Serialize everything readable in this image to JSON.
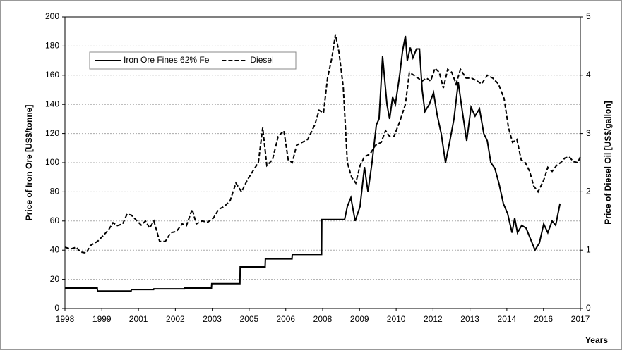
{
  "chart_data": {
    "type": "line",
    "xlabel": "Years",
    "ylabel": "Price of Iron Ore [US$/tonne]",
    "y2label": "Price of Diesel Oil [US$/gallon]",
    "xlim": [
      1998,
      2017
    ],
    "xticks": [
      {
        "value": 1998,
        "label": "1998"
      },
      {
        "value": 1999.36,
        "label": "1999"
      },
      {
        "value": 2000.71,
        "label": "2001"
      },
      {
        "value": 2002.07,
        "label": "2002"
      },
      {
        "value": 2003.43,
        "label": "2003"
      },
      {
        "value": 2004.79,
        "label": "2005"
      },
      {
        "value": 2006.14,
        "label": "2006"
      },
      {
        "value": 2007.5,
        "label": "2008"
      },
      {
        "value": 2008.86,
        "label": "2009"
      },
      {
        "value": 2010.21,
        "label": "2010"
      },
      {
        "value": 2011.57,
        "label": "2012"
      },
      {
        "value": 2012.93,
        "label": "2013"
      },
      {
        "value": 2014.29,
        "label": "2014"
      },
      {
        "value": 2015.64,
        "label": "2016"
      },
      {
        "value": 2017,
        "label": "2017"
      }
    ],
    "ylim": [
      0,
      200
    ],
    "yticks": [
      0,
      20,
      40,
      60,
      80,
      100,
      120,
      140,
      160,
      180,
      200
    ],
    "y2lim": [
      0,
      5
    ],
    "y2ticks": [
      0,
      1,
      2,
      3,
      4,
      5
    ],
    "grid": true,
    "legend": "top-left",
    "series": [
      {
        "name": "Iron Ore Fines 62% Fe",
        "color": "#000000",
        "line_style": "solid",
        "x": [
          1998.0,
          1999.19,
          1999.2,
          2000.44,
          2000.45,
          2001.27,
          2001.28,
          2002.41,
          2002.42,
          2003.4,
          2003.41,
          2004.45,
          2004.46,
          2005.38,
          2005.39,
          2006.37,
          2006.38,
          2007.46,
          2007.47,
          2008.31,
          2008.41,
          2008.54,
          2008.7,
          2008.88,
          2009.04,
          2009.17,
          2009.32,
          2009.48,
          2009.58,
          2009.71,
          2009.87,
          2009.97,
          2010.08,
          2010.18,
          2010.34,
          2010.44,
          2010.55,
          2010.62,
          2010.73,
          2010.83,
          2010.96,
          2011.07,
          2011.17,
          2011.27,
          2011.43,
          2011.59,
          2011.72,
          2011.87,
          2012.03,
          2012.19,
          2012.34,
          2012.5,
          2012.65,
          2012.81,
          2012.97,
          2013.12,
          2013.28,
          2013.44,
          2013.57,
          2013.7,
          2013.85,
          2014.01,
          2014.16,
          2014.32,
          2014.48,
          2014.58,
          2014.68,
          2014.84,
          2015.0,
          2015.33,
          2015.49,
          2015.65,
          2015.8,
          2015.96,
          2016.09,
          2016.25
        ],
        "values": [
          14,
          14,
          12,
          12,
          13,
          13,
          13.5,
          13.5,
          14,
          14,
          17,
          17,
          28.5,
          28.5,
          34,
          34,
          37,
          37,
          61,
          61,
          70,
          76,
          60,
          70,
          97,
          80,
          100,
          126,
          130,
          173,
          140,
          130,
          145,
          140,
          160,
          176,
          187,
          170,
          179,
          172,
          178,
          178,
          150,
          135,
          140,
          148,
          133,
          120,
          100,
          115,
          130,
          155,
          135,
          115,
          138,
          132,
          137,
          120,
          115,
          100,
          96,
          85,
          72,
          65,
          52,
          62,
          52,
          57,
          55,
          40,
          45,
          58,
          52,
          60,
          57,
          72
        ]
      },
      {
        "name": "Diesel",
        "color": "#000000",
        "line_style": "dashed",
        "axis": "y2",
        "x": [
          1998.0,
          1998.21,
          1998.42,
          1998.57,
          1998.78,
          1998.94,
          1999.2,
          1999.41,
          1999.61,
          1999.77,
          1999.93,
          2000.13,
          2000.29,
          2000.45,
          2000.66,
          2000.81,
          2000.97,
          2001.12,
          2001.28,
          2001.49,
          2001.7,
          2001.9,
          2002.11,
          2002.32,
          2002.48,
          2002.69,
          2002.84,
          2003.05,
          2003.26,
          2003.47,
          2003.67,
          2003.88,
          2004.09,
          2004.3,
          2004.51,
          2004.72,
          2004.92,
          2005.13,
          2005.29,
          2005.44,
          2005.65,
          2005.86,
          2006.07,
          2006.23,
          2006.38,
          2006.54,
          2006.75,
          2006.95,
          2007.21,
          2007.37,
          2007.53,
          2007.68,
          2007.84,
          2007.97,
          2008.1,
          2008.26,
          2008.41,
          2008.57,
          2008.72,
          2008.88,
          2009.04,
          2009.25,
          2009.45,
          2009.66,
          2009.82,
          2009.97,
          2010.13,
          2010.34,
          2010.55,
          2010.7,
          2010.86,
          2011.02,
          2011.17,
          2011.33,
          2011.48,
          2011.64,
          2011.8,
          2011.95,
          2012.11,
          2012.26,
          2012.42,
          2012.58,
          2012.79,
          2012.99,
          2013.2,
          2013.36,
          2013.57,
          2013.77,
          2013.98,
          2014.19,
          2014.35,
          2014.5,
          2014.66,
          2014.82,
          2014.97,
          2015.13,
          2015.28,
          2015.44,
          2015.65,
          2015.8,
          2015.96,
          2016.12,
          2016.27,
          2016.43,
          2016.59,
          2016.74,
          2016.9,
          2017.0
        ],
        "values": [
          1.05,
          1.02,
          1.05,
          0.97,
          0.95,
          1.08,
          1.15,
          1.25,
          1.35,
          1.47,
          1.42,
          1.45,
          1.62,
          1.6,
          1.5,
          1.43,
          1.5,
          1.38,
          1.5,
          1.15,
          1.15,
          1.3,
          1.32,
          1.45,
          1.42,
          1.7,
          1.45,
          1.5,
          1.48,
          1.55,
          1.7,
          1.75,
          1.85,
          2.15,
          2.0,
          2.2,
          2.35,
          2.5,
          3.1,
          2.45,
          2.55,
          2.95,
          3.05,
          2.55,
          2.5,
          2.8,
          2.85,
          2.9,
          3.15,
          3.4,
          3.35,
          3.95,
          4.3,
          4.7,
          4.4,
          3.8,
          2.5,
          2.25,
          2.15,
          2.45,
          2.6,
          2.65,
          2.8,
          2.85,
          3.05,
          2.95,
          2.95,
          3.2,
          3.5,
          4.05,
          4.0,
          3.95,
          3.9,
          3.95,
          3.9,
          4.12,
          4.05,
          3.78,
          4.1,
          4.05,
          3.85,
          4.1,
          3.95,
          3.95,
          3.9,
          3.85,
          4.0,
          3.95,
          3.85,
          3.6,
          3.1,
          2.85,
          2.9,
          2.55,
          2.5,
          2.35,
          2.1,
          2.0,
          2.2,
          2.42,
          2.35,
          2.45,
          2.5,
          2.58,
          2.6,
          2.52,
          2.5,
          2.6
        ]
      }
    ]
  }
}
